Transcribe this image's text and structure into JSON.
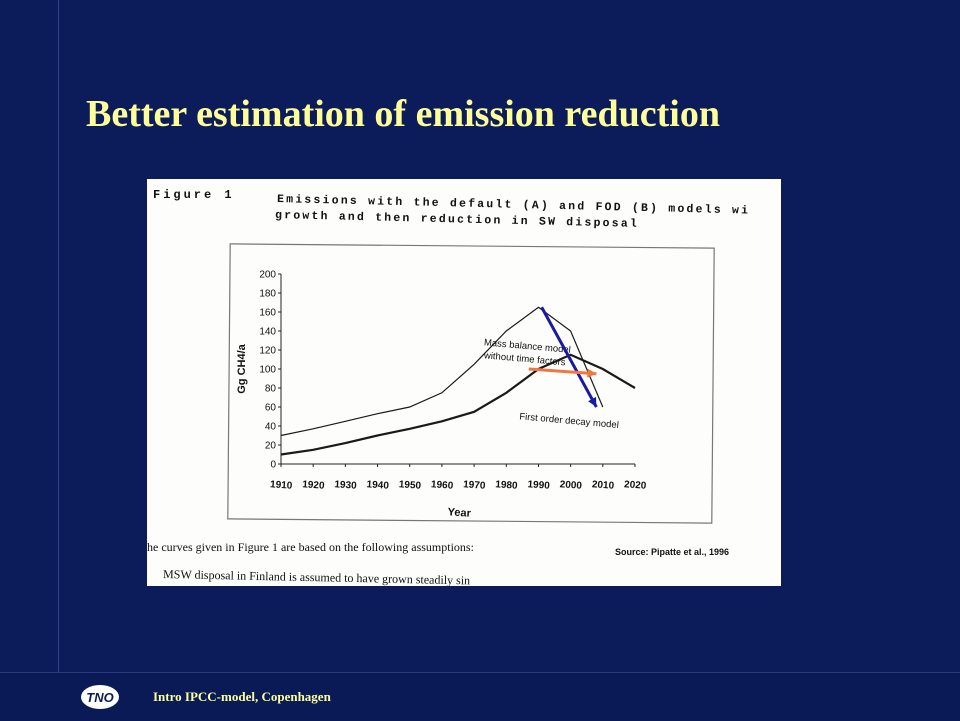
{
  "slide": {
    "title": "Better estimation of emission reduction",
    "footer_text": "Intro IPCC-model, Copenhagen",
    "logo_text": "TNO"
  },
  "figure": {
    "label": "Figure 1",
    "caption_line1": "Emissions with the default (A) and FOD (B) models wi",
    "caption_line2": "growth and then reduction in SW disposal",
    "source": "Source: Pipatte et al., 1996",
    "note_line1": "he curves given in Figure 1 are based on the following assumptions:",
    "note_line2": "MSW disposal in Finland is assumed to have grown steadily sin"
  },
  "colors": {
    "background": "#0c1c5b",
    "title": "#ffff99",
    "blue_arrow": "#1a1aa0",
    "orange_arrow": "#f07840"
  },
  "chart_data": {
    "type": "line",
    "title": "",
    "xlabel": "Year",
    "ylabel": "Gg CH4/a",
    "xlim": [
      1910,
      2020
    ],
    "ylim": [
      0,
      200
    ],
    "x_ticks": [
      1910,
      1920,
      1930,
      1940,
      1950,
      1960,
      1970,
      1980,
      1990,
      2000,
      2010,
      2020
    ],
    "y_ticks": [
      0,
      20,
      40,
      60,
      80,
      100,
      120,
      140,
      160,
      180,
      200
    ],
    "grid": false,
    "series": [
      {
        "name": "Mass balance model without time factors",
        "x": [
          1910,
          1920,
          1930,
          1940,
          1950,
          1960,
          1970,
          1980,
          1990,
          2000,
          2010
        ],
        "values": [
          30,
          37,
          45,
          53,
          60,
          75,
          105,
          140,
          165,
          140,
          60
        ]
      },
      {
        "name": "First order decay model",
        "x": [
          1910,
          1920,
          1930,
          1940,
          1950,
          1960,
          1970,
          1980,
          1990,
          2000,
          2010,
          2020
        ],
        "values": [
          10,
          15,
          22,
          30,
          37,
          45,
          55,
          75,
          100,
          115,
          100,
          80
        ]
      }
    ],
    "annotations": [
      {
        "text": "Mass balance model",
        "kind": "series-label"
      },
      {
        "text": "without time factors",
        "kind": "series-label"
      },
      {
        "text": "First order decay model",
        "kind": "series-label"
      }
    ],
    "arrows": [
      {
        "color": "blue",
        "from": [
          1991,
          165
        ],
        "to": [
          2008,
          60
        ]
      },
      {
        "color": "orange",
        "from": [
          1987,
          100
        ],
        "to": [
          2008,
          95
        ]
      }
    ]
  }
}
